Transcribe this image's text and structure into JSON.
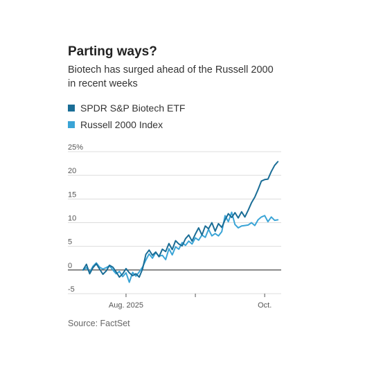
{
  "title": "Parting ways?",
  "subtitle": "Biotech has surged ahead of the Russell 2000 in recent weeks",
  "source": "Source: FactSet",
  "colors": {
    "biotech": "#1a6d96",
    "russell": "#3aa4d6",
    "grid": "#dcdcdc",
    "zero": "#333333"
  },
  "chart_data": {
    "type": "line",
    "title": "Parting ways?",
    "subtitle": "Biotech has surged ahead of the Russell 2000 in recent weeks",
    "xlabel": "",
    "ylabel": "",
    "ylim": [
      -5,
      25
    ],
    "yticks": [
      {
        "value": 25,
        "label": "25%"
      },
      {
        "value": 20,
        "label": "20"
      },
      {
        "value": 15,
        "label": "15"
      },
      {
        "value": 10,
        "label": "10"
      },
      {
        "value": 5,
        "label": "5"
      },
      {
        "value": 0,
        "label": "0"
      },
      {
        "value": -5,
        "label": "-5"
      }
    ],
    "xlim": [
      0,
      60
    ],
    "xticks": [
      {
        "x": 13,
        "label": "Aug. 2025"
      },
      {
        "x": 34,
        "label": ""
      },
      {
        "x": 55,
        "label": "Oct."
      }
    ],
    "grid": true,
    "legend_position": "top-left",
    "series": [
      {
        "name": "SPDR S&P Biotech ETF",
        "color": "#1a6d96",
        "points": [
          [
            0,
            0
          ],
          [
            1,
            1.2
          ],
          [
            2,
            -0.8
          ],
          [
            3,
            0.5
          ],
          [
            4,
            1.3
          ],
          [
            5,
            0.2
          ],
          [
            6,
            -0.9
          ],
          [
            7,
            -0.2
          ],
          [
            8,
            1
          ],
          [
            9,
            0.6
          ],
          [
            10,
            -0.4
          ],
          [
            11,
            -1.5
          ],
          [
            12,
            -0.8
          ],
          [
            13,
            0.3
          ],
          [
            14,
            -0.6
          ],
          [
            15,
            -1.2
          ],
          [
            16,
            -0.8
          ],
          [
            17,
            -1.5
          ],
          [
            18,
            0.2
          ],
          [
            19,
            3.3
          ],
          [
            20,
            4.2
          ],
          [
            21,
            3.1
          ],
          [
            22,
            3.8
          ],
          [
            23,
            2.8
          ],
          [
            24,
            4.4
          ],
          [
            25,
            3.9
          ],
          [
            26,
            5.6
          ],
          [
            27,
            4.3
          ],
          [
            28,
            6.2
          ],
          [
            29,
            5.5
          ],
          [
            30,
            5.1
          ],
          [
            31,
            6.6
          ],
          [
            32,
            7.4
          ],
          [
            33,
            6.1
          ],
          [
            34,
            7.6
          ],
          [
            35,
            8.9
          ],
          [
            36,
            7.4
          ],
          [
            37,
            9.3
          ],
          [
            38,
            8.7
          ],
          [
            39,
            10
          ],
          [
            40,
            8.2
          ],
          [
            41,
            9.8
          ],
          [
            42,
            9
          ],
          [
            43,
            10.6
          ],
          [
            44,
            11.9
          ],
          [
            45,
            11.1
          ],
          [
            46,
            12.1
          ],
          [
            47,
            11
          ],
          [
            48,
            12.3
          ],
          [
            49,
            11.2
          ],
          [
            50,
            12.6
          ],
          [
            51,
            14.2
          ],
          [
            52,
            15.4
          ],
          [
            53,
            17
          ],
          [
            54,
            18.8
          ],
          [
            55,
            19.1
          ],
          [
            56,
            19.2
          ],
          [
            57,
            20.8
          ],
          [
            58,
            22.1
          ],
          [
            59,
            22.9
          ]
        ]
      },
      {
        "name": "Russell 2000 Index",
        "color": "#3aa4d6",
        "points": [
          [
            0,
            0
          ],
          [
            1,
            0.5
          ],
          [
            2,
            -0.5
          ],
          [
            3,
            0.8
          ],
          [
            4,
            1.5
          ],
          [
            5,
            0.6
          ],
          [
            6,
            0.2
          ],
          [
            7,
            0.5
          ],
          [
            8,
            0.9
          ],
          [
            9,
            0
          ],
          [
            10,
            -0.8
          ],
          [
            11,
            -0.3
          ],
          [
            12,
            -1.4
          ],
          [
            13,
            -0.6
          ],
          [
            14,
            -2.6
          ],
          [
            15,
            -0.5
          ],
          [
            16,
            -1.3
          ],
          [
            17,
            -0.4
          ],
          [
            18,
            0.6
          ],
          [
            19,
            2.1
          ],
          [
            20,
            3.4
          ],
          [
            21,
            2.5
          ],
          [
            22,
            3.7
          ],
          [
            23,
            2.9
          ],
          [
            24,
            3.1
          ],
          [
            25,
            2.2
          ],
          [
            26,
            4.5
          ],
          [
            27,
            3.2
          ],
          [
            28,
            4.9
          ],
          [
            29,
            4.4
          ],
          [
            30,
            5.8
          ],
          [
            31,
            5.2
          ],
          [
            32,
            6.1
          ],
          [
            33,
            5.5
          ],
          [
            34,
            6.8
          ],
          [
            35,
            6.3
          ],
          [
            36,
            7.4
          ],
          [
            37,
            6.9
          ],
          [
            38,
            8.6
          ],
          [
            39,
            7.2
          ],
          [
            40,
            7.7
          ],
          [
            41,
            7.2
          ],
          [
            42,
            8.1
          ],
          [
            43,
            11.5
          ],
          [
            44,
            10.2
          ],
          [
            45,
            12.2
          ],
          [
            46,
            9.6
          ],
          [
            47,
            8.9
          ],
          [
            48,
            9.3
          ],
          [
            49,
            9.4
          ],
          [
            50,
            9.5
          ],
          [
            51,
            10
          ],
          [
            52,
            9.4
          ],
          [
            53,
            10.6
          ],
          [
            54,
            11.2
          ],
          [
            55,
            11.5
          ],
          [
            56,
            10.2
          ],
          [
            57,
            11.2
          ],
          [
            58,
            10.5
          ],
          [
            59,
            10.6
          ]
        ]
      }
    ]
  }
}
